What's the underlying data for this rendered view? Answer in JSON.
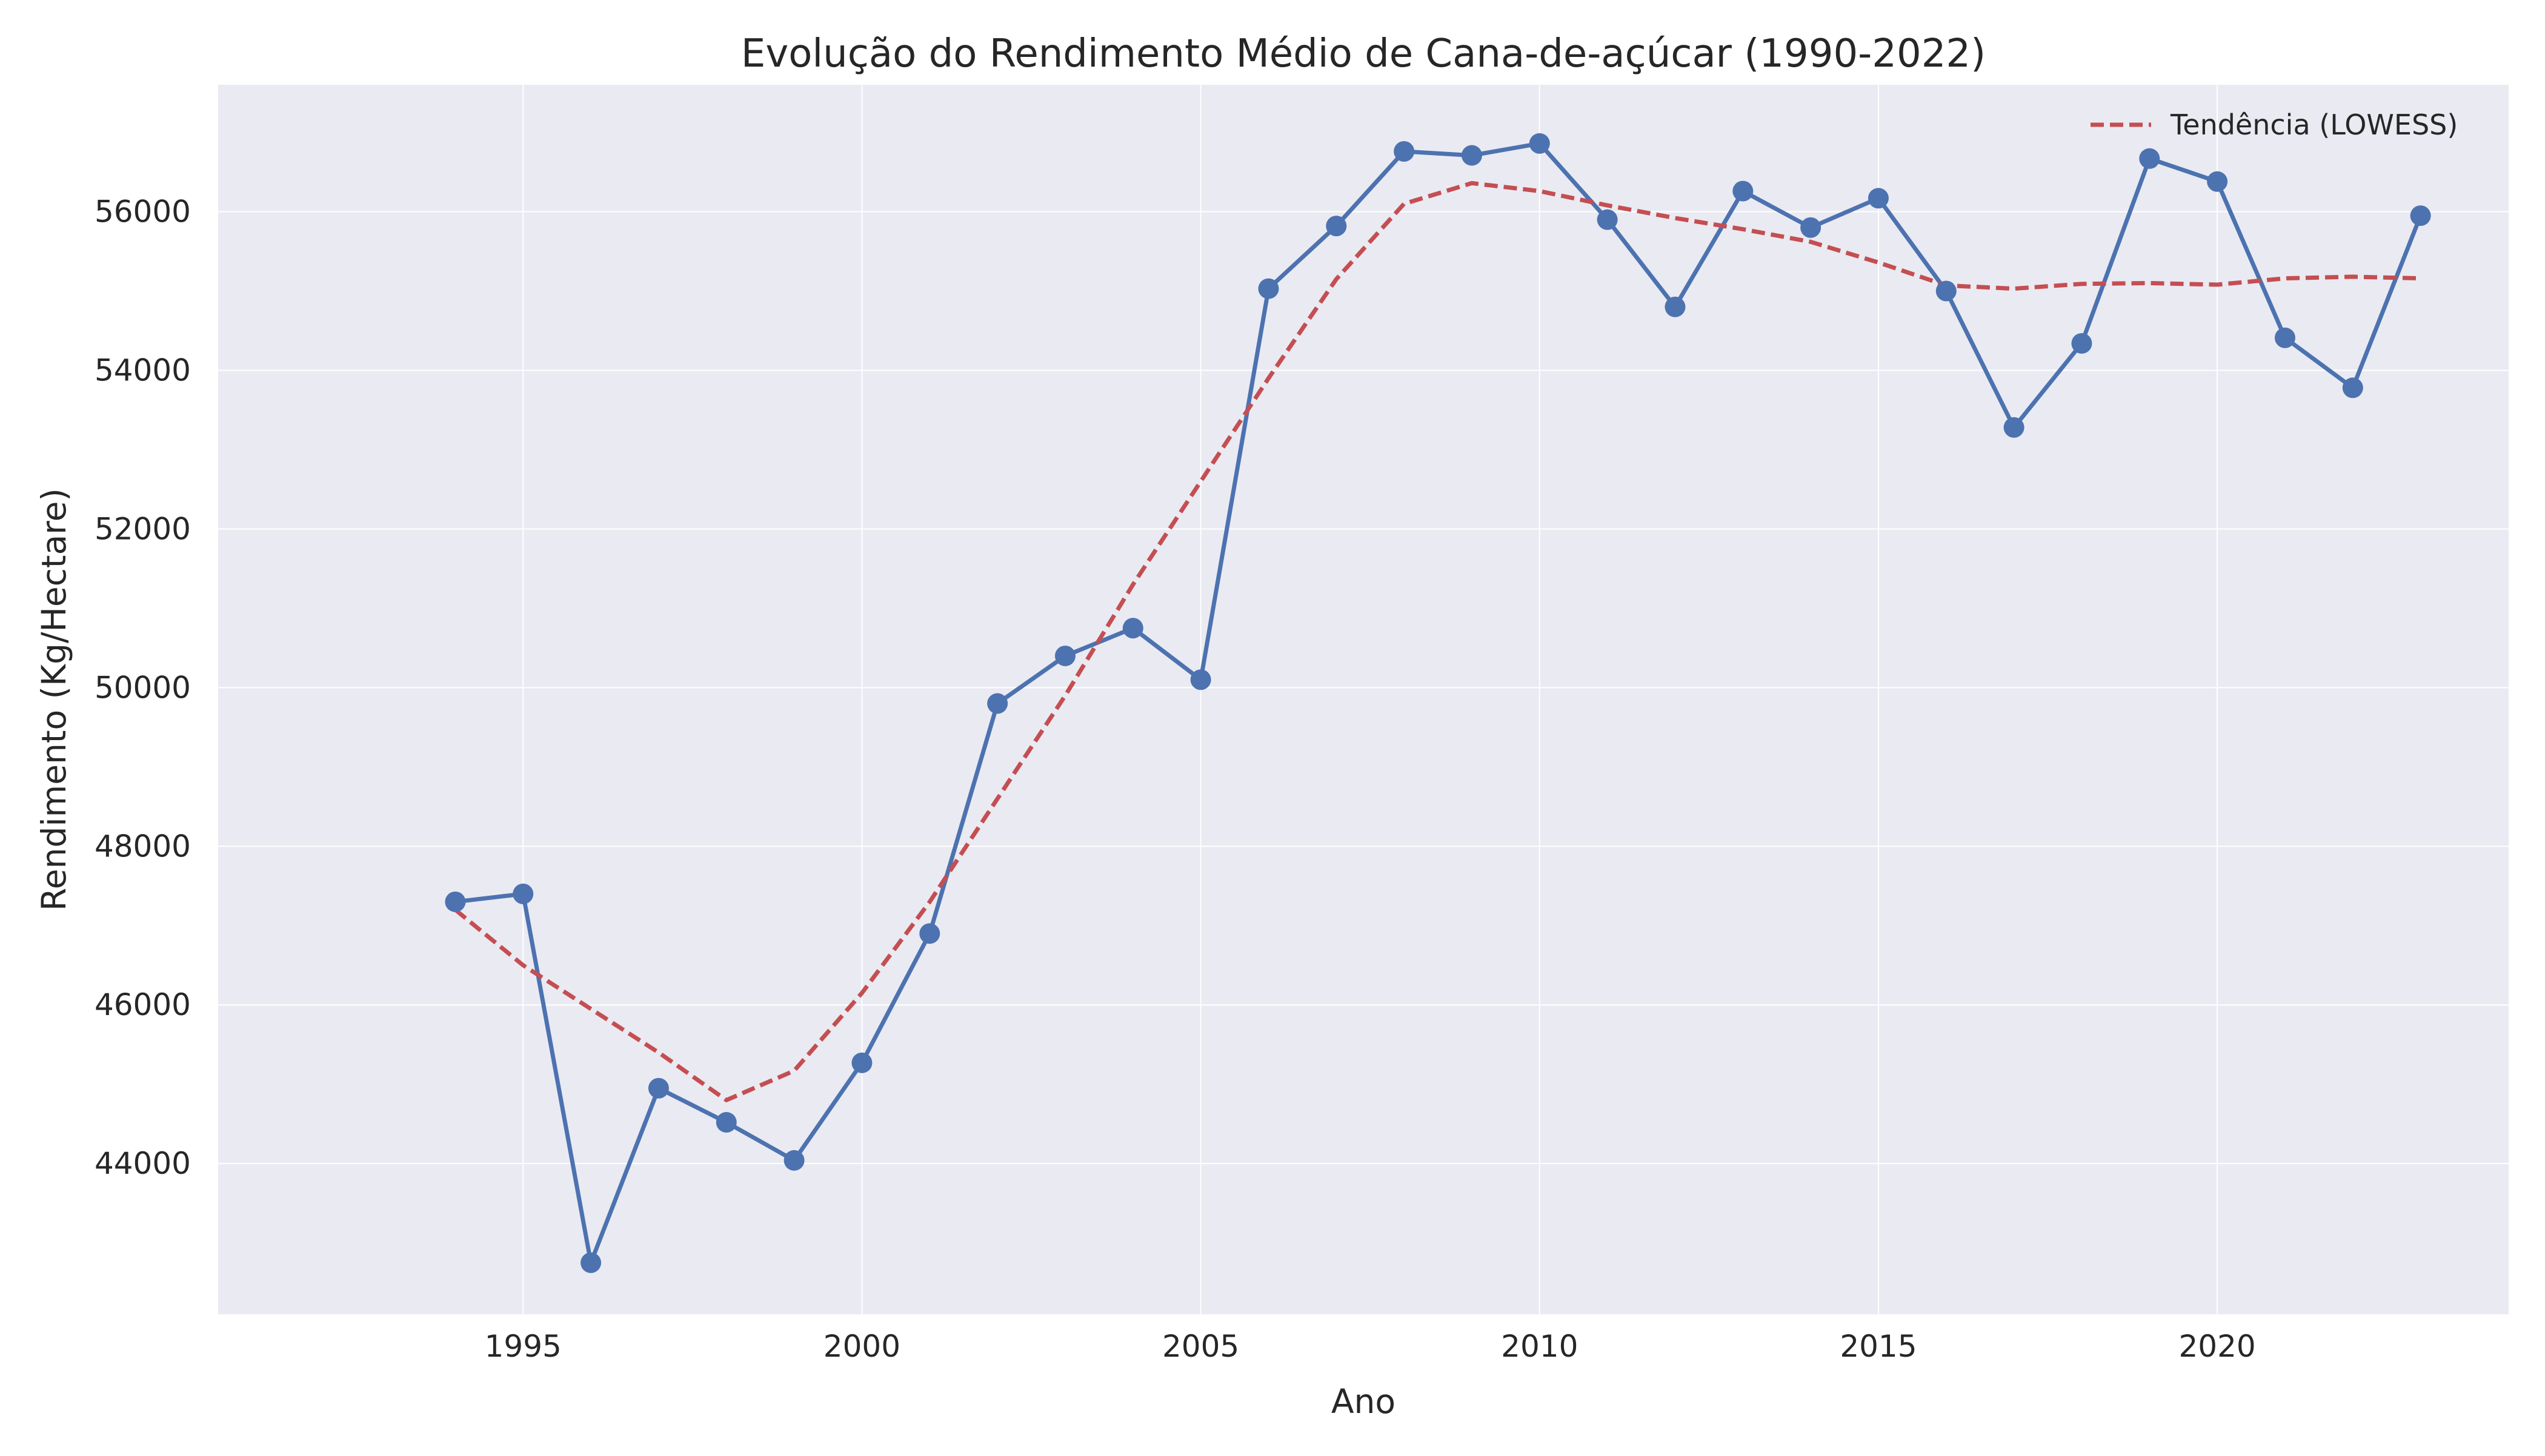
{
  "chart_data": {
    "type": "line",
    "title": "Evolução do Rendimento Médio de Cana-de-açúcar (1990-2022)",
    "xlabel": "Ano",
    "ylabel": "Rendimento (Kg/Hectare)",
    "xlim": [
      1990.5,
      2024.3
    ],
    "ylim": [
      42100,
      57600
    ],
    "x_ticks": [
      1995,
      2000,
      2005,
      2010,
      2015,
      2020
    ],
    "y_ticks": [
      44000,
      46000,
      48000,
      50000,
      52000,
      54000,
      56000
    ],
    "grid": true,
    "legend_position": "upper right",
    "series": [
      {
        "name": "",
        "style": "solid line with circle markers",
        "color": "#4c72b0",
        "x": [
          1994,
          1995,
          1996,
          1997,
          1998,
          1999,
          2000,
          2001,
          2002,
          2003,
          2004,
          2005,
          2006,
          2007,
          2008,
          2009,
          2010,
          2011,
          2012,
          2013,
          2014,
          2015,
          2016,
          2017,
          2018,
          2019,
          2020,
          2021,
          2022,
          2023
        ],
        "y": [
          47300,
          47400,
          42750,
          44950,
          44520,
          44040,
          45270,
          46900,
          49800,
          50400,
          50750,
          50100,
          55030,
          55820,
          56760,
          56710,
          56860,
          55900,
          54800,
          56260,
          55800,
          56170,
          55000,
          53280,
          54340,
          56670,
          56380,
          54410,
          53780,
          55950
        ]
      },
      {
        "name": "Tendência (LOWESS)",
        "style": "dashed line",
        "color": "#c44e52",
        "x": [
          1994,
          1995,
          1996,
          1997,
          1998,
          1999,
          2000,
          2001,
          2002,
          2003,
          2004,
          2005,
          2006,
          2007,
          2008,
          2009,
          2010,
          2011,
          2012,
          2013,
          2014,
          2015,
          2016,
          2017,
          2018,
          2019,
          2020,
          2021,
          2022,
          2023
        ],
        "y": [
          47200,
          46500,
          45950,
          45400,
          44800,
          45170,
          46150,
          47300,
          48600,
          49900,
          51300,
          52600,
          53900,
          55150,
          56100,
          56360,
          56260,
          56080,
          55920,
          55780,
          55620,
          55360,
          55070,
          55030,
          55090,
          55100,
          55080,
          55160,
          55180,
          55160
        ]
      }
    ]
  },
  "style": {
    "axes_background": "#eaeaf2",
    "grid_color": "#ffffff",
    "text_color": "#262626"
  }
}
